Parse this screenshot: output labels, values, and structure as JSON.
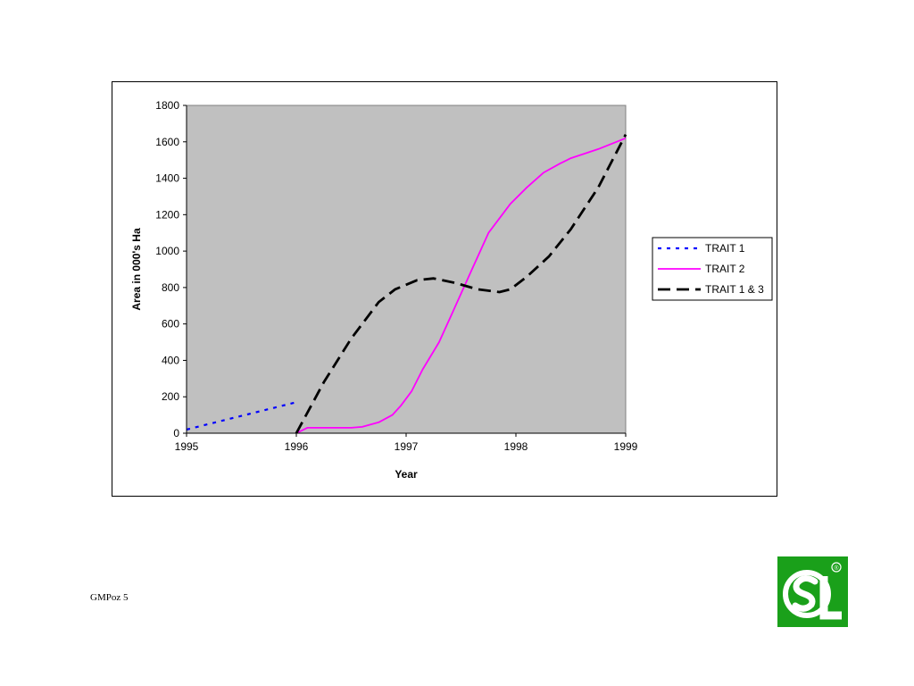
{
  "chart_data": {
    "type": "line",
    "title": "",
    "xlabel": "Year",
    "ylabel": "Area in 000's Ha",
    "xlim": [
      1995,
      1999
    ],
    "ylim": [
      0,
      1800
    ],
    "x_ticks": [
      "1995",
      "1996",
      "1997",
      "1998",
      "1999"
    ],
    "y_ticks": [
      "0",
      "200",
      "400",
      "600",
      "800",
      "1000",
      "1200",
      "1400",
      "1600",
      "1800"
    ],
    "plot_background": "#c0c0c0",
    "grid": false,
    "legend_position": "right",
    "series": [
      {
        "name": "TRAIT 1",
        "color": "#0000ff",
        "style": "dotted",
        "points": [
          [
            1995,
            20
          ],
          [
            1996,
            170
          ]
        ]
      },
      {
        "name": "TRAIT 2",
        "color": "#ff00ff",
        "style": "solid",
        "points": [
          [
            1996,
            0
          ],
          [
            1996.1,
            30
          ],
          [
            1996.3,
            30
          ],
          [
            1996.5,
            30
          ],
          [
            1996.6,
            35
          ],
          [
            1996.75,
            60
          ],
          [
            1996.875,
            100
          ],
          [
            1996.95,
            150
          ],
          [
            1997.05,
            230
          ],
          [
            1997.15,
            350
          ],
          [
            1997.3,
            500
          ],
          [
            1997.45,
            700
          ],
          [
            1997.6,
            900
          ],
          [
            1997.75,
            1100
          ],
          [
            1997.95,
            1260
          ],
          [
            1998.1,
            1350
          ],
          [
            1998.25,
            1430
          ],
          [
            1998.4,
            1480
          ],
          [
            1998.5,
            1510
          ],
          [
            1998.75,
            1560
          ],
          [
            1999,
            1620
          ]
        ]
      },
      {
        "name": "TRAIT 1 & 3",
        "color": "#000000",
        "style": "dashed",
        "points": [
          [
            1996,
            0
          ],
          [
            1996.25,
            280
          ],
          [
            1996.5,
            520
          ],
          [
            1996.75,
            720
          ],
          [
            1996.9,
            790
          ],
          [
            1997.1,
            840
          ],
          [
            1997.25,
            850
          ],
          [
            1997.45,
            825
          ],
          [
            1997.65,
            790
          ],
          [
            1997.85,
            775
          ],
          [
            1997.95,
            790
          ],
          [
            1998.1,
            860
          ],
          [
            1998.3,
            970
          ],
          [
            1998.5,
            1120
          ],
          [
            1998.75,
            1350
          ],
          [
            1999,
            1640
          ]
        ]
      }
    ]
  },
  "footer": {
    "label": "GMPoz 5"
  },
  "logo": {
    "text": "SL",
    "mark": "®",
    "color": "#1aa01a"
  }
}
